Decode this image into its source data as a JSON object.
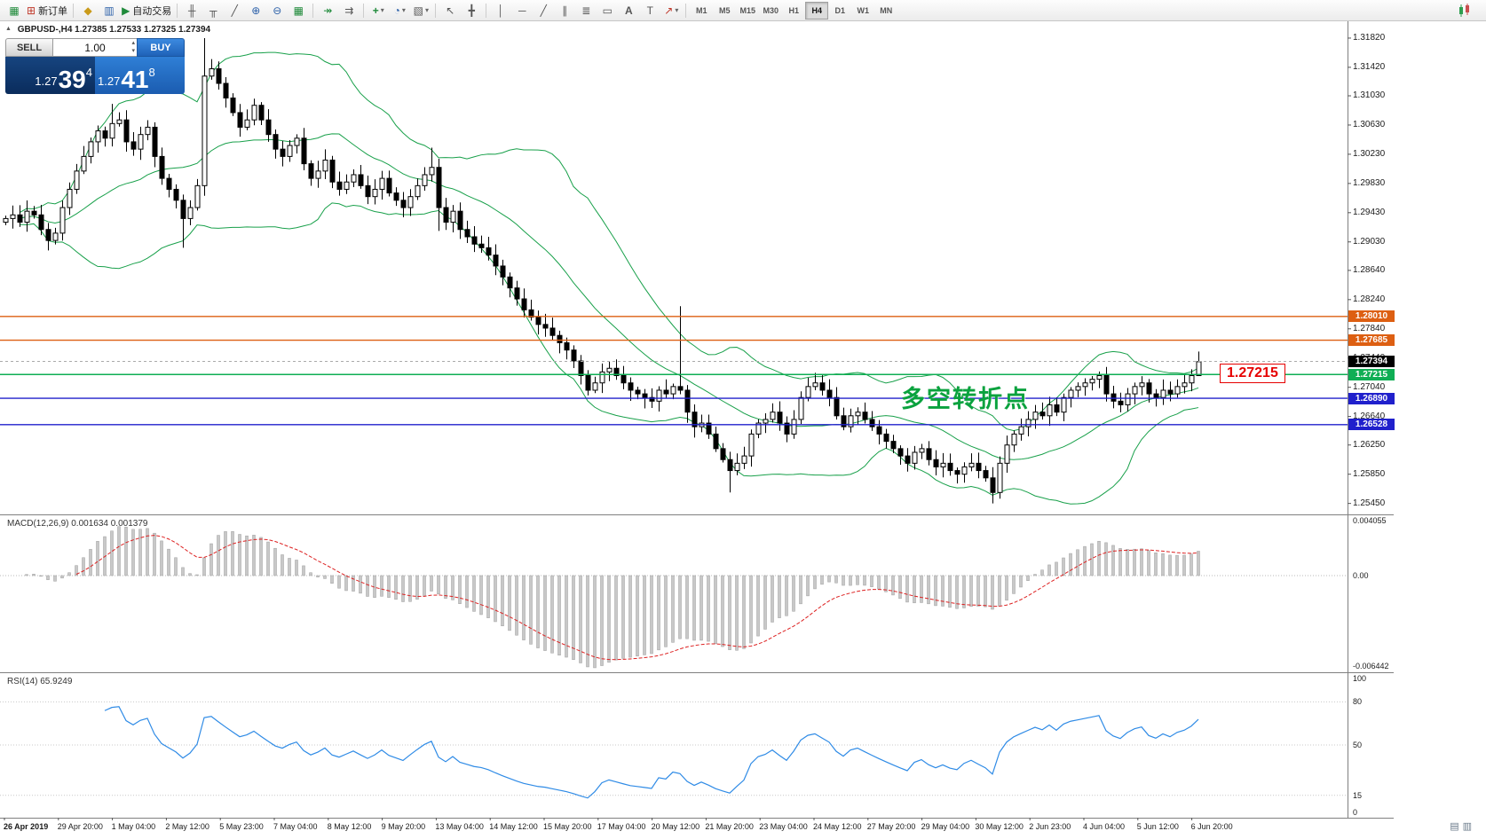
{
  "toolbar": {
    "new_order_label": "新订单",
    "autotrading_label": "自动交易",
    "timeframes": [
      "M1",
      "M5",
      "M15",
      "M30",
      "H1",
      "H4",
      "D1",
      "W1",
      "MN"
    ],
    "active_timeframe": "H4"
  },
  "icons": {
    "collapse": "▲",
    "terminal_logo": "▦",
    "new_order": "⊞",
    "metaeditor": "◆",
    "market_watch": "▥",
    "autotrading_play": "▶",
    "chart_bars": "╫",
    "chart_candles": "╥",
    "chart_line": "╱",
    "zoom_in": "⊕",
    "zoom_out": "⊖",
    "tile_windows": "▦",
    "auto_scroll": "↠",
    "chart_shift": "⇉",
    "indicators_add": "+",
    "periods": "◔",
    "templates": "▧",
    "cursor": "↖",
    "crosshair": "╋",
    "vertical_line": "│",
    "horizontal_line": "─",
    "trendline": "╱",
    "channel": "∥",
    "fibonacci": "≣",
    "shapes": "▭",
    "text_tool": "A",
    "label_tool": "T",
    "arrows_tool": "↗",
    "dropdown": "▾",
    "vol_up": "▴",
    "vol_down": "▾",
    "status_1": "▤",
    "status_2": "▥"
  },
  "quote_bar": {
    "text": "GBPUSD-,H4 1.27385 1.27533 1.27325 1.27394"
  },
  "trade_panel": {
    "sell_label": "SELL",
    "buy_label": "BUY",
    "volume": "1.00",
    "bid": {
      "prefix": "1.27",
      "big": "39",
      "sup": "4",
      "full": "1.27394"
    },
    "ask": {
      "prefix": "1.27",
      "big": "41",
      "sup": "8",
      "full": "1.27418"
    }
  },
  "annotations": {
    "turning_point": "多空转折点",
    "callout": "1.27215"
  },
  "chart_data": {
    "type": "candlestick",
    "symbol": "GBPUSD-",
    "timeframe": "H4",
    "ohlc_display": {
      "open": "1.27385",
      "high": "1.27533",
      "low": "1.27325",
      "close": "1.27394"
    },
    "colors": {
      "candle_up": "#ffffff",
      "candle_down": "#000000",
      "bollinger": "#18a04a",
      "macd_hist": "#c8c8c8",
      "macd_signal": "#dd2222",
      "rsi_line": "#2f8be6"
    },
    "bollinger": {
      "period": 20,
      "deviation": 2
    },
    "candles": {
      "first_open": 1.293,
      "closes": [
        1.2935,
        1.294,
        1.293,
        1.2945,
        1.294,
        1.292,
        1.2905,
        1.2915,
        1.295,
        1.2975,
        1.3,
        1.302,
        1.304,
        1.3055,
        1.3045,
        1.3065,
        1.307,
        1.304,
        1.303,
        1.305,
        1.306,
        1.302,
        1.299,
        1.2975,
        1.296,
        1.2935,
        1.295,
        1.298,
        1.313,
        1.314,
        1.312,
        1.31,
        1.308,
        1.306,
        1.307,
        1.309,
        1.307,
        1.305,
        1.303,
        1.302,
        1.3035,
        1.3045,
        1.301,
        1.299,
        1.3,
        1.3015,
        1.2985,
        1.2975,
        1.2985,
        1.2995,
        1.298,
        1.2965,
        1.2975,
        1.299,
        1.297,
        1.296,
        1.295,
        1.2965,
        1.298,
        1.2995,
        1.3005,
        1.295,
        1.293,
        1.2945,
        1.292,
        1.291,
        1.29,
        1.2895,
        1.2885,
        1.287,
        1.2855,
        1.284,
        1.2825,
        1.281,
        1.28,
        1.279,
        1.2785,
        1.2775,
        1.2765,
        1.2755,
        1.274,
        1.272,
        1.27,
        1.271,
        1.2725,
        1.273,
        1.272,
        1.271,
        1.27,
        1.2695,
        1.269,
        1.2685,
        1.27,
        1.2695,
        1.2705,
        1.27,
        1.267,
        1.265,
        1.2655,
        1.264,
        1.262,
        1.2605,
        1.259,
        1.26,
        1.261,
        1.264,
        1.2655,
        1.266,
        1.267,
        1.2655,
        1.264,
        1.266,
        1.269,
        1.2705,
        1.271,
        1.27,
        1.269,
        1.2665,
        1.265,
        1.2665,
        1.267,
        1.266,
        1.265,
        1.264,
        1.263,
        1.262,
        1.261,
        1.26,
        1.2615,
        1.262,
        1.2605,
        1.2595,
        1.26,
        1.259,
        1.2585,
        1.2595,
        1.26,
        1.259,
        1.258,
        1.256,
        1.26,
        1.2625,
        1.264,
        1.265,
        1.266,
        1.267,
        1.2665,
        1.268,
        1.267,
        1.269,
        1.27,
        1.2705,
        1.271,
        1.2715,
        1.272,
        1.2695,
        1.2685,
        1.268,
        1.2695,
        1.2705,
        1.271,
        1.2695,
        1.269,
        1.27,
        1.2695,
        1.2705,
        1.271,
        1.272,
        1.2739
      ],
      "spikes": {
        "15": {
          "h": 1.3092
        },
        "25": {
          "l": 1.2895
        },
        "28": {
          "h": 1.3182
        },
        "60": {
          "h": 1.3032
        },
        "61": {
          "l": 1.2918
        },
        "95": {
          "h": 1.2815
        },
        "102": {
          "l": 1.256
        },
        "139": {
          "l": 1.2545
        },
        "168": {
          "h": 1.2753,
          "l": 1.2733
        }
      }
    },
    "price_axis": {
      "values": [
        "1.31820",
        "1.31420",
        "1.31030",
        "1.30630",
        "1.30230",
        "1.29830",
        "1.29430",
        "1.29030",
        "1.28640",
        "1.28240",
        "1.27840",
        "1.27440",
        "1.27040",
        "1.26640",
        "1.26250",
        "1.25850",
        "1.25450"
      ]
    },
    "hlines": [
      {
        "price": 1.2801,
        "label": "1.28010",
        "color": "#DD5F12"
      },
      {
        "price": 1.27685,
        "label": "1.27685",
        "color": "#DD5F12"
      },
      {
        "price": 1.27215,
        "label": "1.27215",
        "color": "#0FAE54"
      },
      {
        "price": 1.2689,
        "label": "1.26890",
        "color": "#2020CC"
      },
      {
        "price": 1.26528,
        "label": "1.26528",
        "color": "#2020CC"
      }
    ],
    "current_price": {
      "price": 1.27394,
      "label": "1.27394",
      "color": "#000000"
    },
    "macd": {
      "label": "MACD(12,26,9) 0.001634 0.001379",
      "fast": 12,
      "slow": 26,
      "signal": 9,
      "value": "0.001634",
      "signal_value": "0.001379",
      "max": 0.004055,
      "min": -0.006442,
      "axis": [
        "0.004055",
        "0.00",
        "-0.006442"
      ]
    },
    "rsi": {
      "label": "RSI(14) 65.9249",
      "period": 14,
      "value": "65.9249",
      "axis": [
        100,
        80,
        50,
        15,
        0
      ],
      "level_lines": [
        80,
        50,
        15
      ]
    },
    "time_axis": [
      "26 Apr 2019",
      "29 Apr 20:00",
      "1 May 04:00",
      "2 May 12:00",
      "5 May 23:00",
      "7 May 04:00",
      "8 May 12:00",
      "9 May 20:00",
      "13 May 04:00",
      "14 May 12:00",
      "15 May 20:00",
      "17 May 04:00",
      "20 May 12:00",
      "21 May 20:00",
      "23 May 04:00",
      "24 May 12:00",
      "27 May 20:00",
      "29 May 04:00",
      "30 May 12:00",
      "2 Jun 23:00",
      "4 Jun 04:00",
      "5 Jun 12:00",
      "6 Jun 20:00"
    ]
  }
}
